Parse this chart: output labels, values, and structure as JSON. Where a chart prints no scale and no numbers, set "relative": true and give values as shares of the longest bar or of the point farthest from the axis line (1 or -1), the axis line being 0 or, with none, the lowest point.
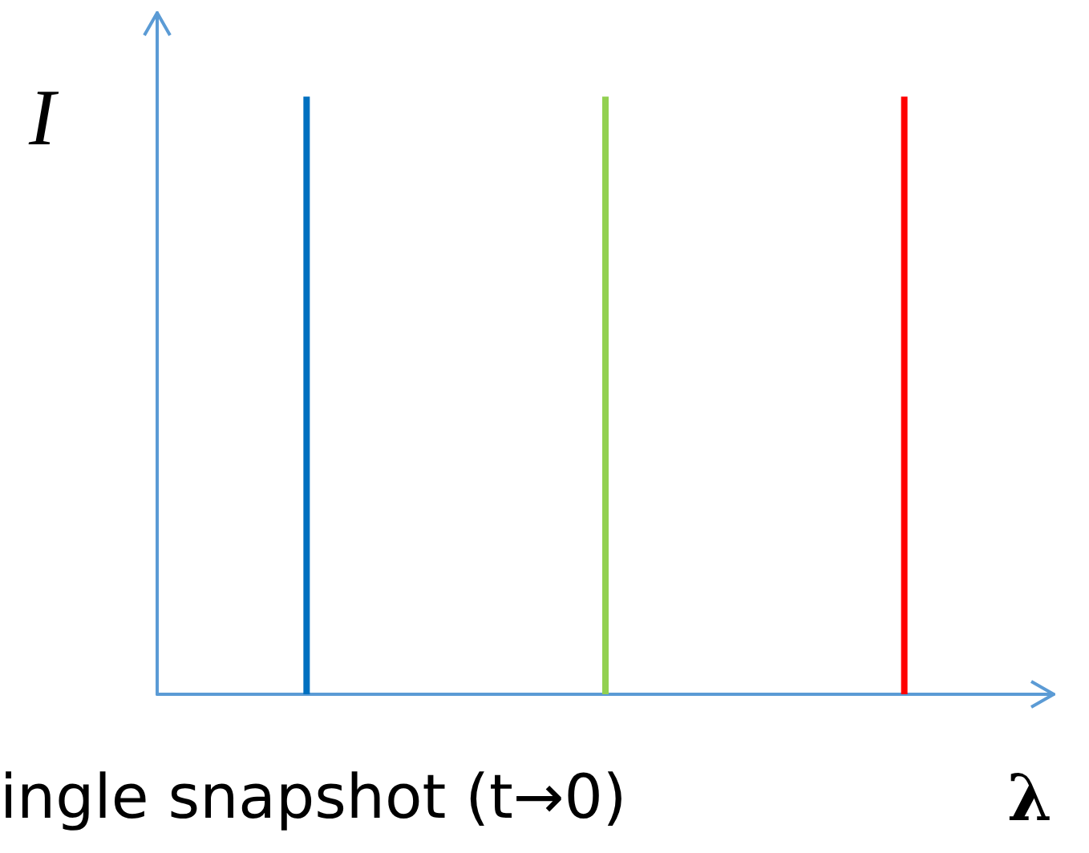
{
  "chart_data": {
    "type": "bar",
    "relative": true,
    "xlabel": "λ",
    "ylabel": "I",
    "annotations": [
      "ingle snapshot (t→0)"
    ],
    "categories": [
      null,
      null,
      null
    ],
    "series": [
      {
        "values": [
          1,
          1,
          1
        ],
        "colors": [
          "#0070c0",
          "#92d050",
          "#ff0000"
        ]
      }
    ],
    "grid": false
  }
}
